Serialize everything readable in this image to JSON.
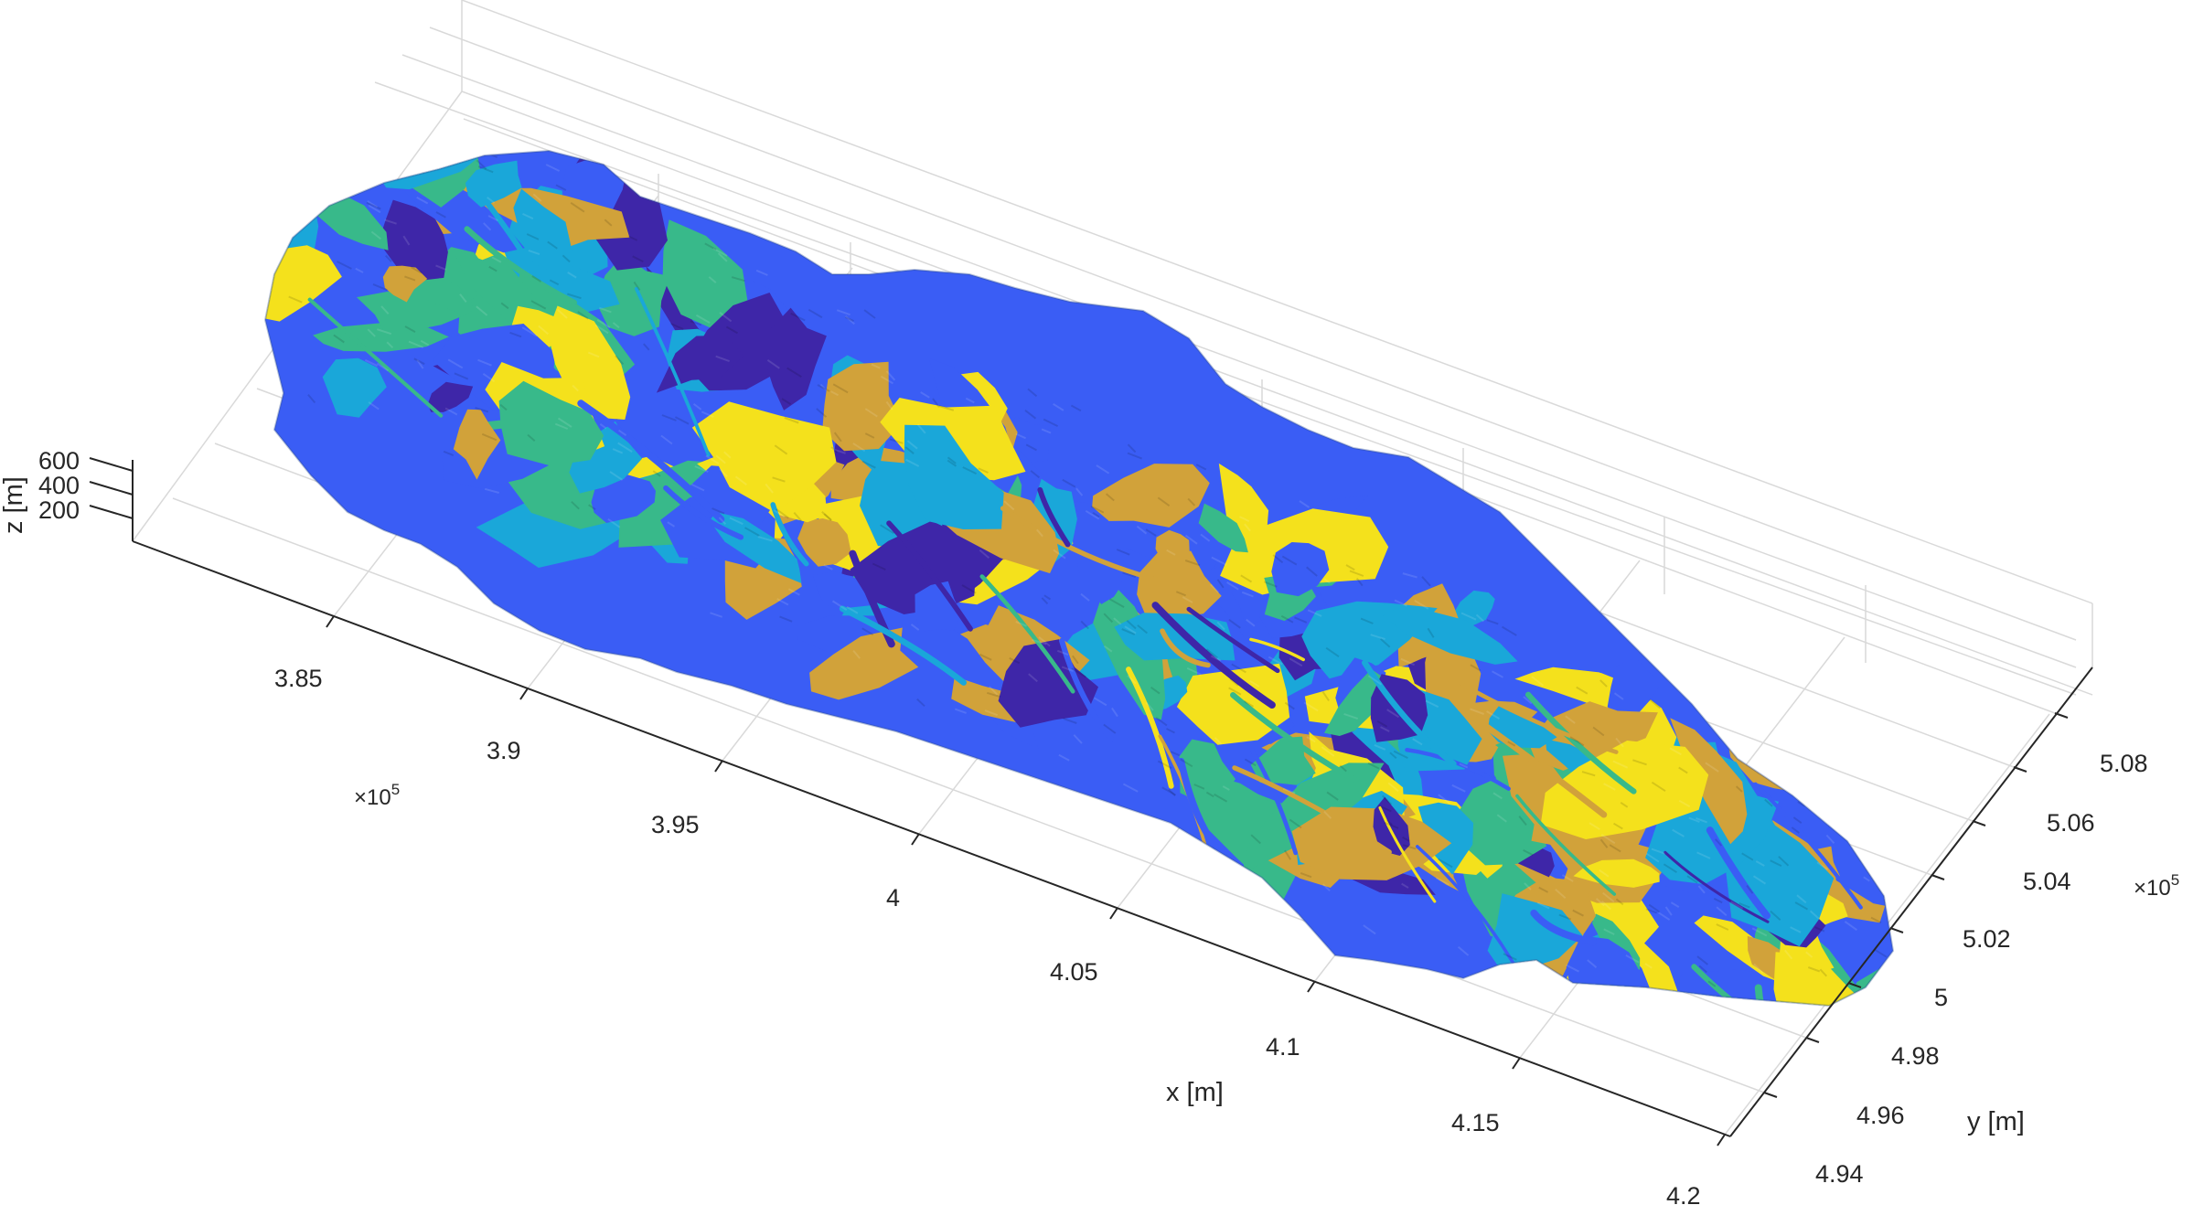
{
  "chart_data": {
    "type": "surface",
    "title": "",
    "xlabel": "x [m]",
    "ylabel": "y [m]",
    "zlabel": "z [m]",
    "x_ticks": [
      3.85,
      3.9,
      3.95,
      4.0,
      4.05,
      4.1,
      4.15,
      4.2
    ],
    "x_tick_labels": [
      "3.85",
      "3.9",
      "3.95",
      "4",
      "4.05",
      "4.1",
      "4.15",
      "4.2"
    ],
    "x_exponent": "×10",
    "x_exponent_power": "5",
    "y_ticks": [
      4.94,
      4.96,
      4.98,
      5.0,
      5.02,
      5.04,
      5.06,
      5.08
    ],
    "y_tick_labels": [
      "4.94",
      "4.96",
      "4.98",
      "5",
      "5.02",
      "5.04",
      "5.06",
      "5.08"
    ],
    "y_exponent": "×10",
    "y_exponent_power": "5",
    "z_ticks": [
      200,
      400,
      600
    ],
    "z_tick_labels": [
      "200",
      "400",
      "600"
    ],
    "xlim": [
      381500,
      421500
    ],
    "ylim": [
      492800,
      509600
    ],
    "zlim": [
      0,
      2500
    ],
    "grid": true,
    "colormap": [
      "#3e26a8",
      "#3a5df5",
      "#1aa7d9",
      "#38b98a",
      "#d1a23a",
      "#f4e11c"
    ],
    "description_colors": {
      "background": "#ffffff",
      "grid": "#d9d9d9",
      "axis": "#262626"
    }
  }
}
